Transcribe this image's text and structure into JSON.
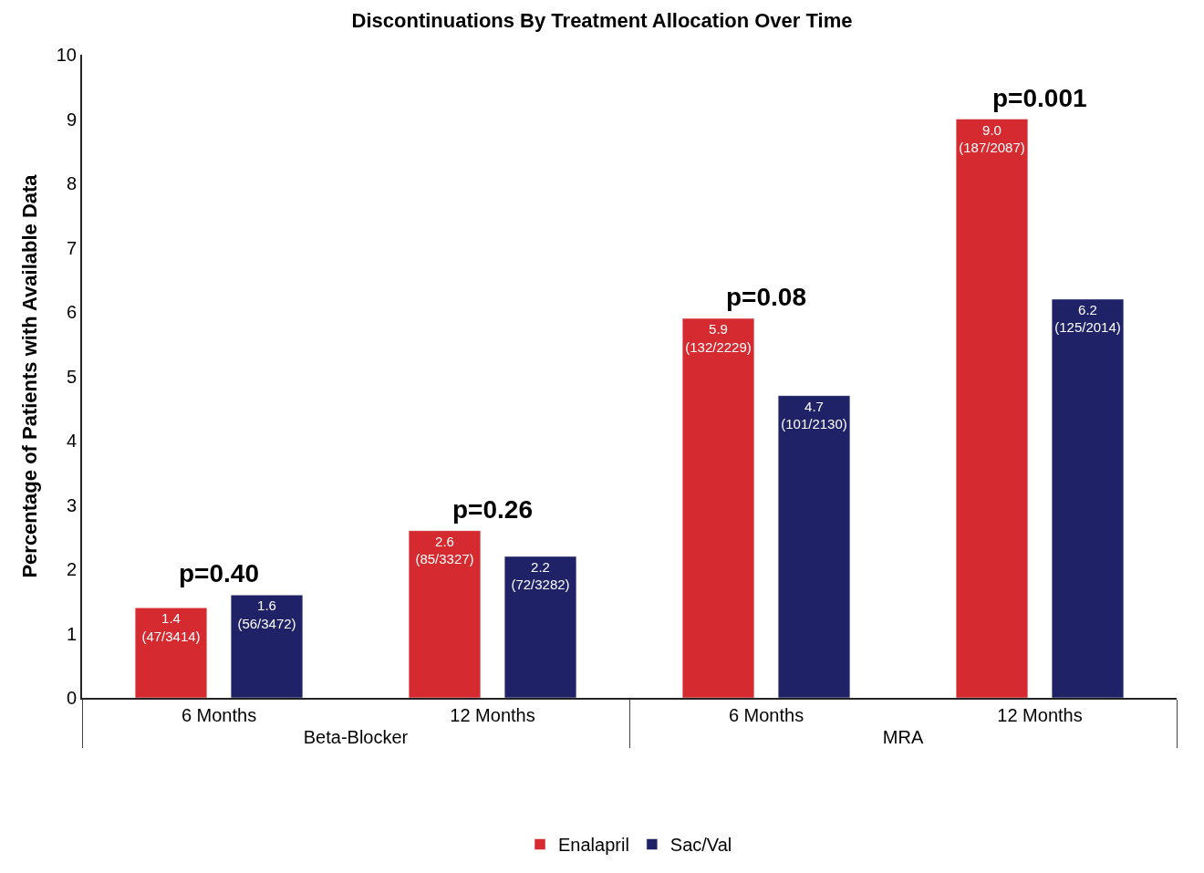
{
  "chart_data": {
    "type": "bar",
    "title": "Discontinuations By Treatment Allocation Over Time",
    "ylabel": "Percentage of Patients with Available Data",
    "categories": [
      "6 Months",
      "12 Months",
      "6 Months",
      "12 Months"
    ],
    "series": [
      {
        "name": "Enalapril",
        "color": "#d42a30",
        "values": [
          1.4,
          2.6,
          5.9,
          9.0
        ],
        "value_labels": [
          "1.4\n(47/3414)",
          "2.6\n(85/3327)",
          "5.9\n(132/2229)",
          "9.0\n(187/2087)"
        ]
      },
      {
        "name": "Sac/Val",
        "color": "#1f2266",
        "values": [
          1.6,
          2.2,
          4.7,
          6.2
        ],
        "value_labels": [
          "1.6\n(56/3472)",
          "2.2\n(72/3282)",
          "4.7\n(101/2130)",
          "6.2\n(125/2014)"
        ]
      }
    ],
    "annotations": [
      "p=0.40",
      "p=0.26",
      "p=0.08",
      "p=0.001",
      "Beta-Blocker",
      "MRA"
    ],
    "ylim": [
      0,
      10
    ],
    "yticks": [
      0,
      1,
      2,
      3,
      4,
      5,
      6,
      7,
      8,
      9,
      10
    ],
    "grid": false,
    "legend": "bottom"
  }
}
